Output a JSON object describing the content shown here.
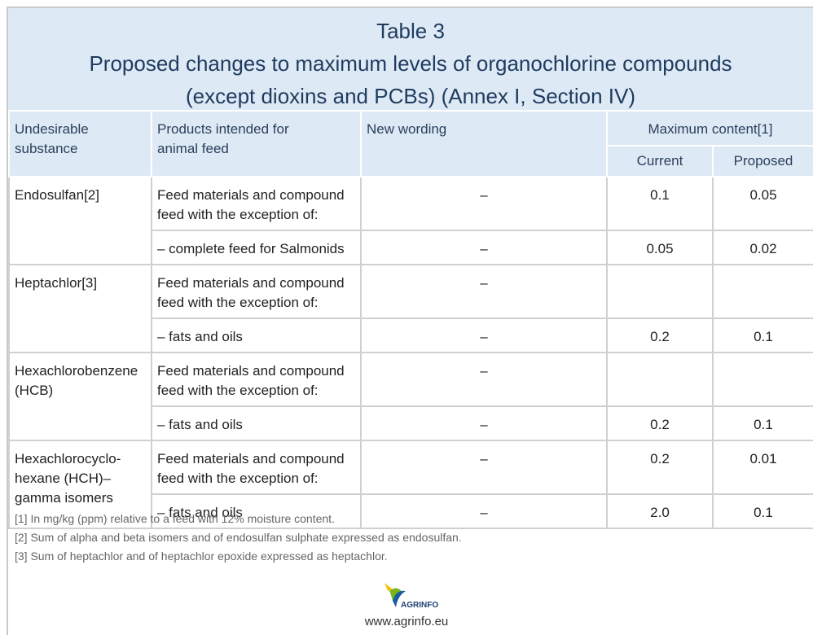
{
  "header": {
    "title": [
      "Table 3",
      "Proposed changes to maximum levels of organochlorine compounds",
      "(except dioxins and PCBs) (Annex I, Section IV)"
    ]
  },
  "table": {
    "columns": {
      "substance": "Undesirable substance",
      "products": "Products intended for animal feed",
      "wording": "New wording",
      "max": "Maximum content[1]",
      "current": "Current",
      "proposed": "Proposed"
    },
    "groups": [
      {
        "substance": "Endosulfan[2]",
        "rows": [
          {
            "product": "Feed materials and compound feed with the exception of:",
            "wording": "–",
            "current": "0.1",
            "proposed": "0.05"
          },
          {
            "product": "– complete feed for Salmonids",
            "wording": "–",
            "current": "0.05",
            "proposed": "0.02"
          }
        ]
      },
      {
        "substance": "Heptachlor[3]",
        "rows": [
          {
            "product": "Feed materials and compound feed with the exception of:",
            "wording": "–"
          },
          {
            "product": "– fats and oils",
            "wording": "–",
            "current": "0.2",
            "proposed": "0.1"
          }
        ]
      },
      {
        "substance": "Hexachlorobenzene (HCB)",
        "rows": [
          {
            "product": "Feed materials and compound feed with the exception of:",
            "wording": "–"
          },
          {
            "product": "– fats and oils",
            "wording": "–",
            "current": "0.2",
            "proposed": "0.1"
          }
        ]
      },
      {
        "substance": "Hexachlorocyclo-hexane (HCH)–gamma isomers",
        "rows": [
          {
            "product": "Feed materials and compound feed with the exception of:",
            "wording": "–",
            "current": "0.2",
            "proposed": "0.01"
          },
          {
            "product": "– fats and oils",
            "wording": "–",
            "current": "2.0",
            "proposed": "0.1"
          }
        ]
      }
    ]
  },
  "footnotes": [
    "[1] In mg/kg (ppm) relative to a feed with 12% moisture content.",
    "[2] Sum of alpha and beta isomers and of endosulfan sulphate expressed as endosulfan.",
    "[3] Sum of heptachlor and of heptachlor epoxide expressed as heptachlor."
  ],
  "logo_text": "AGRINFO",
  "url": "www.agrinfo.eu"
}
